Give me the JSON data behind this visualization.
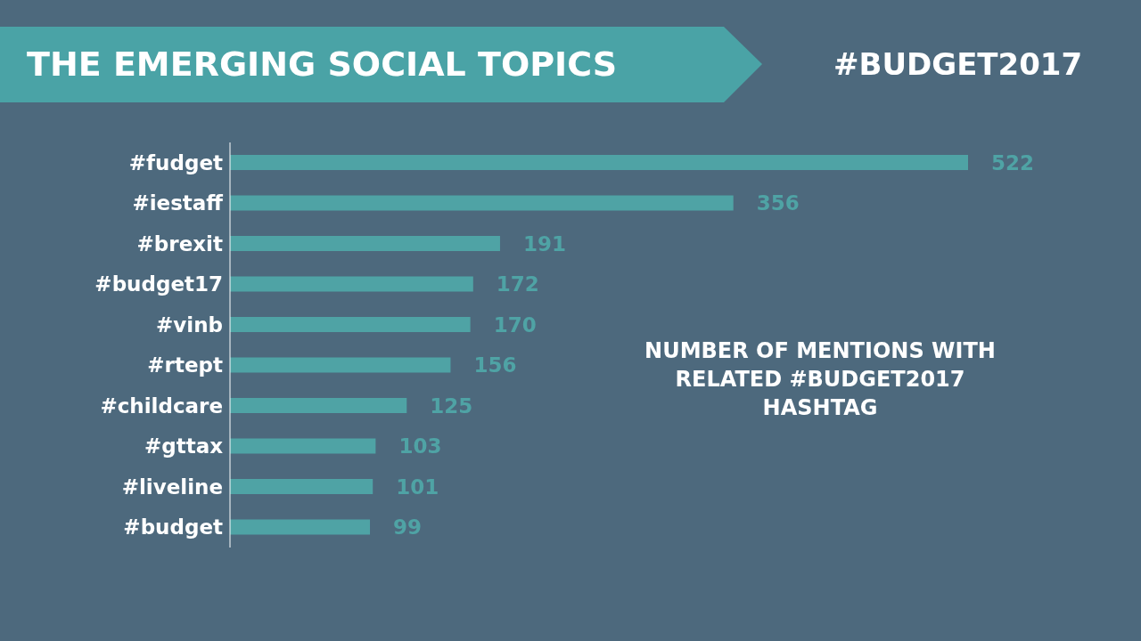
{
  "chart_data": {
    "type": "bar",
    "orientation": "horizontal",
    "title": "THE EMERGING SOCIAL TOPICS",
    "subtitle": "#BUDGET2017",
    "annotations": [
      "NUMBER OF MENTIONS WITH RELATED #BUDGET2017 HASHTAG"
    ],
    "categories": [
      "#fudget",
      "#iestaff",
      "#brexit",
      "#budget17",
      "#vinb",
      "#rtept",
      "#childcare",
      "#gttax",
      "#liveline",
      "#budget"
    ],
    "values": [
      522,
      356,
      191,
      172,
      170,
      156,
      125,
      103,
      101,
      99
    ],
    "color": "#4fa3a5",
    "data_labels": true
  }
}
